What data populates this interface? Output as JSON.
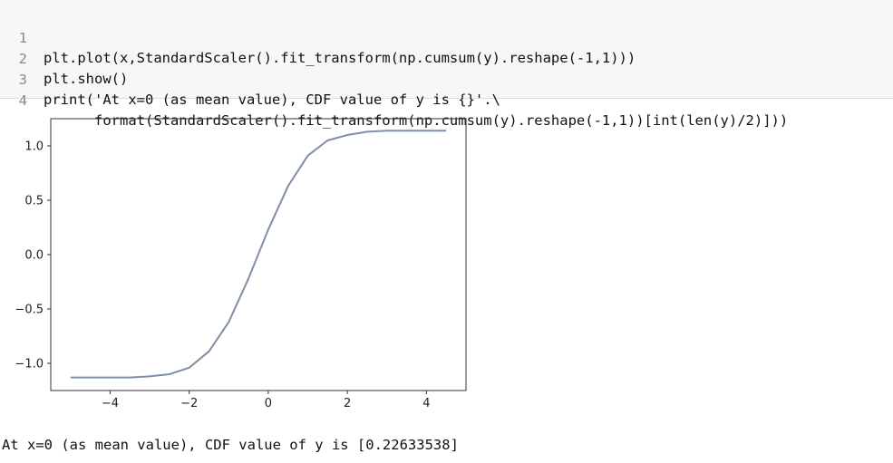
{
  "code_cell": {
    "lines": [
      {
        "number": "1",
        "text": "plt.plot(x,StandardScaler().fit_transform(np.cumsum(y).reshape(-1,1)))"
      },
      {
        "number": "2",
        "text": "plt.show()"
      },
      {
        "number": "3",
        "text": "print('At x=0 (as mean value), CDF value of y is {}'.\\"
      },
      {
        "number": "4",
        "text": "      format(StandardScaler().fit_transform(np.cumsum(y).reshape(-1,1))[int(len(y)/2)]))"
      }
    ]
  },
  "chart_data": {
    "type": "line",
    "title": "",
    "xlabel": "",
    "ylabel": "",
    "xlim": [
      -5.5,
      5.0
    ],
    "ylim": [
      -1.25,
      1.25
    ],
    "xticks": [
      -4,
      -2,
      0,
      2,
      4
    ],
    "xtick_labels": [
      "−4",
      "−2",
      "0",
      "2",
      "4"
    ],
    "yticks": [
      -1.0,
      -0.5,
      0.0,
      0.5,
      1.0
    ],
    "ytick_labels": [
      "−1.0",
      "−0.5",
      "0.0",
      "0.5",
      "1.0"
    ],
    "grid": false,
    "line_color": "#7f8fa6",
    "x": [
      -5.0,
      -4.5,
      -4.0,
      -3.5,
      -3.0,
      -2.5,
      -2.0,
      -1.5,
      -1.0,
      -0.5,
      0.0,
      0.5,
      1.0,
      1.5,
      2.0,
      2.5,
      3.0,
      3.5,
      4.0,
      4.5
    ],
    "y": [
      -1.13,
      -1.13,
      -1.13,
      -1.13,
      -1.12,
      -1.1,
      -1.04,
      -0.89,
      -0.62,
      -0.22,
      0.23,
      0.63,
      0.91,
      1.05,
      1.1,
      1.13,
      1.14,
      1.14,
      1.14,
      1.14
    ]
  },
  "output": {
    "text": "At x=0 (as mean value), CDF value of y is [0.22633538]"
  }
}
